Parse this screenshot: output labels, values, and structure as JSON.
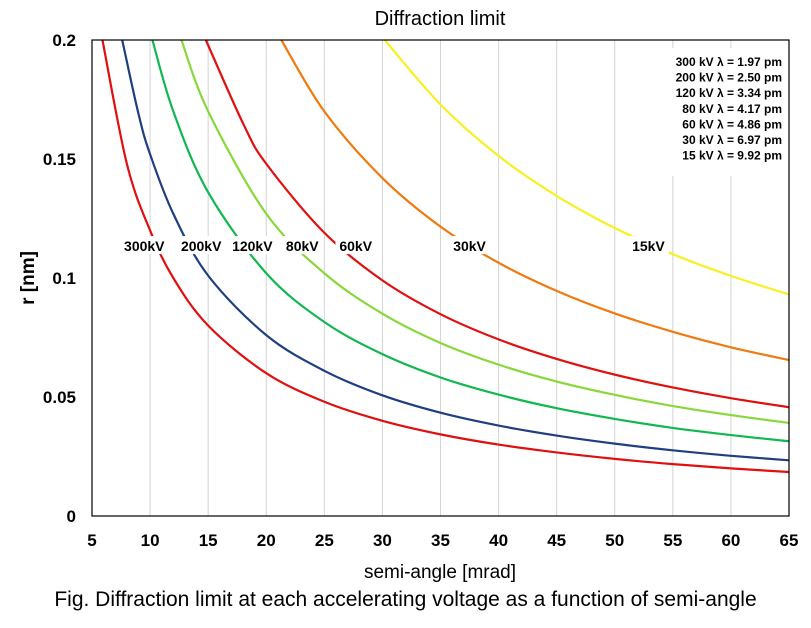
{
  "chart_data": {
    "type": "line",
    "title": "Diffraction limit",
    "xlabel": "semi-angle [mrad]",
    "ylabel": "r [nm]",
    "xlim": [
      5,
      65
    ],
    "ylim": [
      0,
      0.2
    ],
    "xticks": [
      "5",
      "10",
      "15",
      "20",
      "25",
      "30",
      "35",
      "40",
      "45",
      "50",
      "55",
      "60",
      "65"
    ],
    "yticks": [
      "0",
      "0.05",
      "0.1",
      "0.15",
      "0.2"
    ],
    "grid": "vertical",
    "legend_placement": "top-right",
    "legend_entries": [
      "300 kV  λ = 1.97 pm",
      "200 kV  λ = 2.50 pm",
      "120 kV  λ = 3.34 pm",
      "80 kV  λ = 4.17 pm",
      "60 kV  λ = 4.86 pm",
      "30 kV  λ = 6.97 pm",
      "15 kV  λ = 9.92 pm"
    ],
    "series": [
      {
        "name": "300kV",
        "color": "#e01010",
        "x": [
          5.9,
          8,
          10,
          12,
          15,
          20,
          25,
          30,
          35,
          40,
          45,
          50,
          55,
          60,
          65
        ],
        "y": [
          0.2,
          0.148,
          0.12,
          0.1,
          0.08,
          0.06,
          0.048,
          0.04,
          0.0343,
          0.03,
          0.0267,
          0.024,
          0.0218,
          0.02,
          0.0185
        ]
      },
      {
        "name": "200kV",
        "color": "#1f3f80",
        "x": [
          7.6,
          9,
          10,
          12,
          15,
          20,
          25,
          30,
          35,
          40,
          45,
          50,
          55,
          60,
          65
        ],
        "y": [
          0.2,
          0.169,
          0.152,
          0.127,
          0.101,
          0.076,
          0.061,
          0.0507,
          0.0434,
          0.038,
          0.0338,
          0.0304,
          0.0276,
          0.0253,
          0.0234
        ]
      },
      {
        "name": "120kV",
        "color": "#10b850",
        "x": [
          10.2,
          12,
          15,
          20,
          25,
          30,
          35,
          40,
          45,
          50,
          55,
          60,
          65
        ],
        "y": [
          0.2,
          0.17,
          0.136,
          0.102,
          0.0815,
          0.068,
          0.0582,
          0.051,
          0.0453,
          0.0408,
          0.037,
          0.034,
          0.0314
        ]
      },
      {
        "name": "80kV",
        "color": "#88d83a",
        "x": [
          12.7,
          15,
          20,
          25,
          30,
          35,
          40,
          45,
          50,
          55,
          60,
          65
        ],
        "y": [
          0.2,
          0.17,
          0.127,
          0.102,
          0.085,
          0.0727,
          0.0636,
          0.0565,
          0.0509,
          0.0462,
          0.0424,
          0.0391
        ]
      },
      {
        "name": "60kV",
        "color": "#e01010",
        "x": [
          14.8,
          18,
          20,
          25,
          30,
          35,
          40,
          45,
          50,
          55,
          60,
          65
        ],
        "y": [
          0.2,
          0.165,
          0.148,
          0.119,
          0.099,
          0.0848,
          0.0742,
          0.066,
          0.0594,
          0.054,
          0.0495,
          0.0457
        ]
      },
      {
        "name": "30kV",
        "color": "#f07a10",
        "x": [
          21.3,
          25,
          30,
          35,
          40,
          45,
          50,
          55,
          60,
          65
        ],
        "y": [
          0.2,
          0.17,
          0.142,
          0.1216,
          0.1064,
          0.0946,
          0.0851,
          0.0774,
          0.0709,
          0.0655
        ]
      },
      {
        "name": "15kV",
        "color": "#f8f020",
        "x": [
          30.2,
          35,
          40,
          45,
          50,
          55,
          60,
          65
        ],
        "y": [
          0.2,
          0.1729,
          0.1513,
          0.1345,
          0.121,
          0.11,
          0.1009,
          0.0931
        ]
      }
    ],
    "curve_labels": [
      {
        "text": "300kV",
        "x": 9.5,
        "y": 0.113
      },
      {
        "text": "200kV",
        "x": 14.4,
        "y": 0.113
      },
      {
        "text": "120kV",
        "x": 18.8,
        "y": 0.113
      },
      {
        "text": "80kV",
        "x": 23.1,
        "y": 0.113
      },
      {
        "text": "60kV",
        "x": 27.7,
        "y": 0.113
      },
      {
        "text": "30kV",
        "x": 37.5,
        "y": 0.113
      },
      {
        "text": "15kV",
        "x": 52.9,
        "y": 0.113
      }
    ]
  },
  "caption": "Fig. Diffraction limit at each accelerating voltage as a function of semi-angle"
}
